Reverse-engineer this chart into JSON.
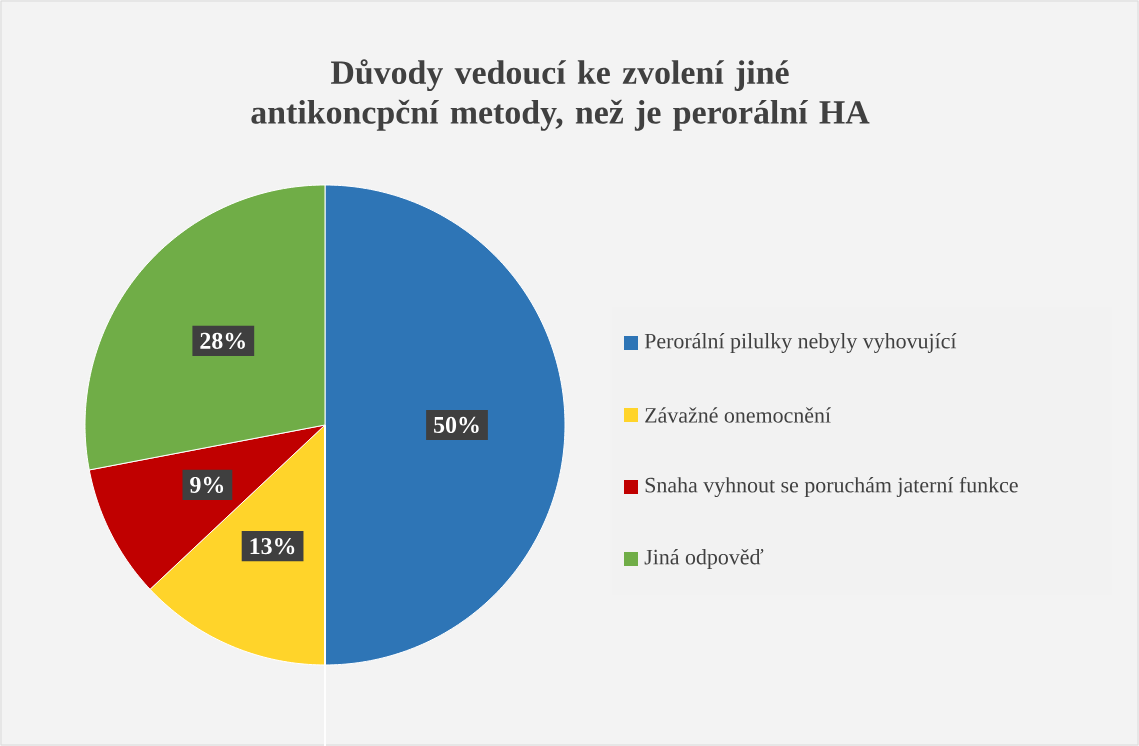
{
  "chart_data": {
    "type": "pie",
    "title": "Důvody vedoucí ke zvolení jiné antikoncpční metody, než je perorální HA",
    "categories": [
      "Perorální pilulky nebyly vyhovující",
      "Závažné onemocnění",
      "Snaha vyhnout se poruchám jaterní funkce",
      "Jiná odpověď"
    ],
    "values": [
      50,
      13,
      9,
      28
    ],
    "value_labels": [
      "50%",
      "13%",
      "9%",
      "28%"
    ],
    "colors": [
      "#2e75b6",
      "#ffd42a",
      "#c00000",
      "#70ad47"
    ],
    "legend": "right"
  }
}
